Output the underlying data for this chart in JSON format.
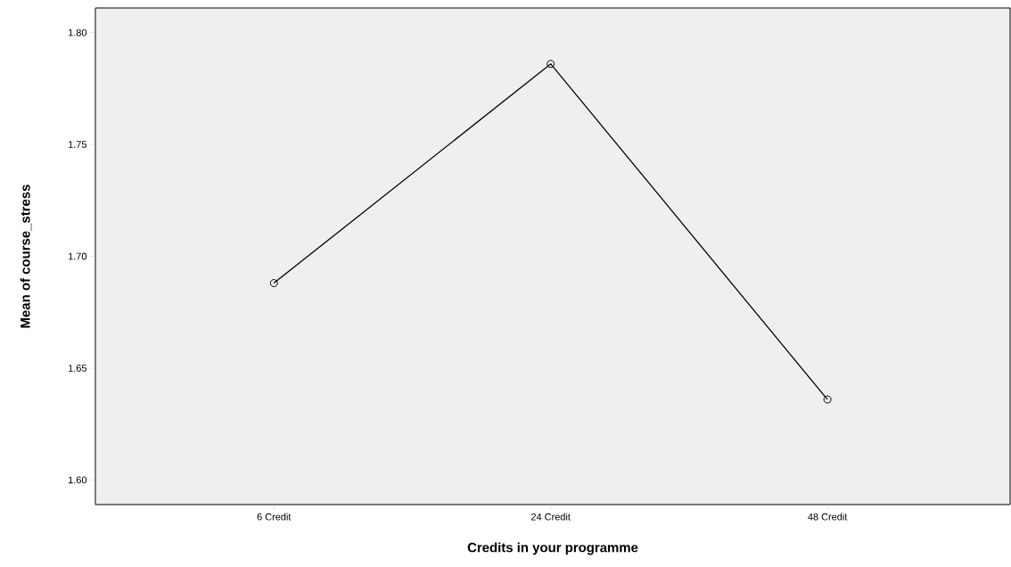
{
  "chart_data": {
    "type": "line",
    "xlabel": "Credits in your programme",
    "ylabel": "Mean of course_stress",
    "categories": [
      "6 Credit",
      "24 Credit",
      "48 Credit"
    ],
    "values": [
      1.688,
      1.786,
      1.636
    ],
    "color": "#000000",
    "marker": "circle",
    "line_style": "solid",
    "ylim": [
      1.589,
      1.811
    ],
    "yticks": [
      {
        "value": 1.6,
        "label": "1.60"
      },
      {
        "value": 1.65,
        "label": "1.65"
      },
      {
        "value": 1.7,
        "label": "1.70"
      },
      {
        "value": 1.75,
        "label": "1.75"
      },
      {
        "value": 1.8,
        "label": "1.80"
      }
    ],
    "grid": false
  }
}
